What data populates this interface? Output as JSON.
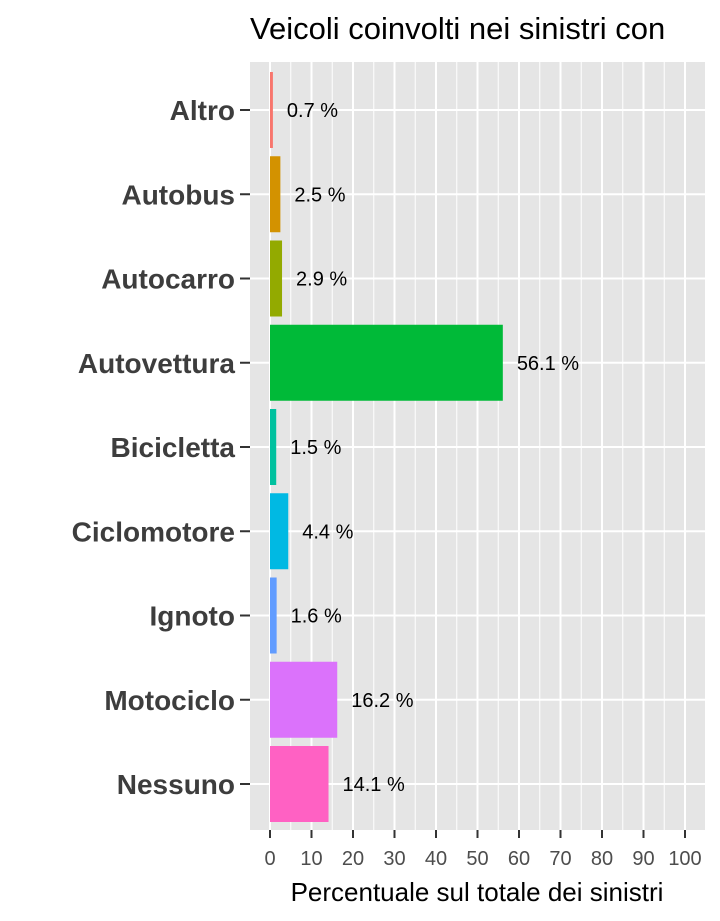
{
  "chart_data": {
    "type": "bar",
    "orientation": "horizontal",
    "title": "Veicoli coinvolti nei sinistri con",
    "xlabel": "Percentuale sul totale dei sinistri",
    "ylabel": "",
    "xlim": [
      0,
      100
    ],
    "x_ticks": [
      0,
      10,
      20,
      30,
      40,
      50,
      60,
      70,
      80,
      90,
      100
    ],
    "grid": true,
    "categories": [
      "Altro",
      "Autobus",
      "Autocarro",
      "Autovettura",
      "Bicicletta",
      "Ciclomotore",
      "Ignoto",
      "Motociclo",
      "Nessuno"
    ],
    "values": [
      0.7,
      2.5,
      2.9,
      56.1,
      1.5,
      4.4,
      1.6,
      16.2,
      14.1
    ],
    "value_labels": [
      "0.7 %",
      "2.5 %",
      "2.9 %",
      "56.1 %",
      "1.5 %",
      "4.4 %",
      "1.6 %",
      "16.2 %",
      "14.1 %"
    ],
    "colors": [
      "#F8766D",
      "#D39200",
      "#93AA00",
      "#00BA38",
      "#00C19F",
      "#00B9E3",
      "#619CFF",
      "#DB72FB",
      "#FF61C3"
    ],
    "panel_background": "#E5E5E5",
    "grid_color": "#FFFFFF"
  }
}
